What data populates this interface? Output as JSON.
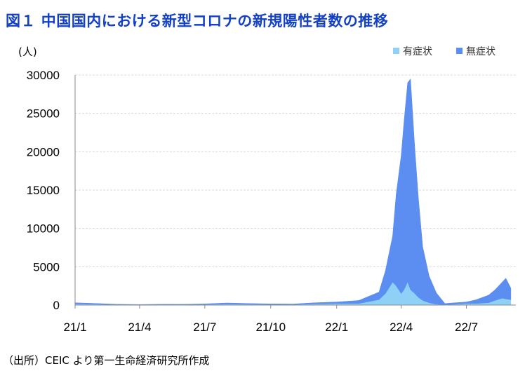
{
  "header": {
    "title": "図１ 中国国内における新型コロナの新規陽性者数の推移"
  },
  "footer": {
    "source": "（出所）CEIC より第一生命経済研究所作成"
  },
  "chart_data": {
    "type": "area",
    "stacked": true,
    "unit_label": "(人)",
    "ylim": [
      0,
      30000
    ],
    "yticks": [
      "0",
      "5000",
      "10000",
      "15000",
      "20000",
      "25000",
      "30000"
    ],
    "xtick_labels": [
      "21/1",
      "21/4",
      "21/7",
      "21/10",
      "22/1",
      "22/4",
      "22/7"
    ],
    "x": [
      "2021-01",
      "2021-02",
      "2021-03",
      "2021-04",
      "2021-05",
      "2021-06",
      "2021-07",
      "2021-08",
      "2021-09",
      "2021-10",
      "2021-11",
      "2021-12",
      "2022-01",
      "2022-02",
      "2022-03-01",
      "2022-03-10",
      "2022-03-20",
      "2022-03-25",
      "2022-04-01",
      "2022-04-05",
      "2022-04-10",
      "2022-04-14",
      "2022-04-20",
      "2022-04-25",
      "2022-05-01",
      "2022-05-10",
      "2022-05-20",
      "2022-06-01",
      "2022-06-15",
      "2022-07-01",
      "2022-07-15",
      "2022-08-01",
      "2022-08-10",
      "2022-08-20",
      "2022-08-25",
      "2022-09-01"
    ],
    "series": [
      {
        "name": "有症状",
        "color": "#8fd0f7",
        "values": [
          150,
          100,
          40,
          30,
          40,
          60,
          80,
          120,
          90,
          70,
          60,
          150,
          200,
          200,
          700,
          1500,
          3000,
          2500,
          1500,
          2000,
          3000,
          2000,
          1500,
          1000,
          600,
          300,
          100,
          50,
          100,
          200,
          200,
          300,
          600,
          900,
          800,
          700
        ]
      },
      {
        "name": "無症状",
        "color": "#5b8ef0",
        "values": [
          150,
          100,
          60,
          40,
          60,
          40,
          80,
          150,
          110,
          90,
          80,
          150,
          200,
          400,
          1000,
          3000,
          6000,
          12000,
          18000,
          22000,
          26000,
          27500,
          19000,
          13000,
          7000,
          3500,
          1500,
          150,
          200,
          200,
          500,
          1000,
          1400,
          2100,
          2700,
          1500
        ]
      }
    ],
    "legend_position": "top-right",
    "grid": true
  }
}
